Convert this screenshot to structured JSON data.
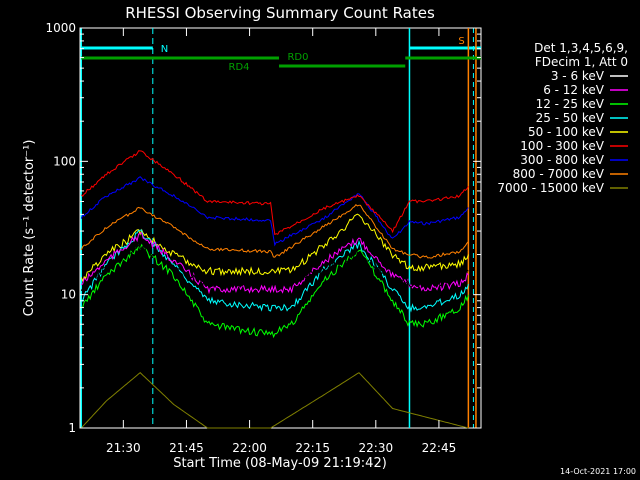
{
  "chart_data": {
    "type": "line",
    "title": "RHESSI Observing Summary Count Rates",
    "xlabel": "Start Time (08-May-09 21:19:42)",
    "ylabel": "Count Rate (s⁻¹ detector⁻¹)",
    "yscale": "log",
    "ylim": [
      1,
      1000
    ],
    "xlim_minutes": [
      21.3,
      22.9
    ],
    "x_ticks": [
      "21:30",
      "21:45",
      "22:00",
      "22:15",
      "22:30",
      "22:45"
    ],
    "y_ticks": [
      "1",
      "10",
      "100",
      "1000"
    ],
    "legend_header": [
      "Det 1,3,4,5,6,9,",
      "FDecim 1, Att 0"
    ],
    "legend_position": "right",
    "footer_date": "14-Oct-2021 17:00",
    "series": [
      {
        "name": "3 - 6 keV",
        "color": "#000000",
        "x": [
          "21:20",
          "21:26",
          "21:34",
          "21:42",
          "21:50",
          "22:05",
          "22:10",
          "22:18",
          "22:26",
          "22:34",
          "22:38",
          "22:42",
          "22:50",
          "22:52"
        ],
        "values": [
          11,
          16,
          23,
          16,
          12,
          12,
          12,
          16,
          20,
          13,
          12,
          12,
          13,
          15
        ]
      },
      {
        "name": "6 - 12 keV",
        "color": "#ff00ff",
        "x": [
          "21:20",
          "21:26",
          "21:34",
          "21:42",
          "21:50",
          "22:05",
          "22:10",
          "22:18",
          "22:26",
          "22:34",
          "22:38",
          "22:42",
          "22:50",
          "22:52"
        ],
        "values": [
          12,
          18,
          28,
          18,
          11,
          11,
          11,
          18,
          26,
          14,
          12,
          11,
          12,
          14
        ]
      },
      {
        "name": "12 - 25 keV",
        "color": "#00ff00",
        "x": [
          "21:20",
          "21:26",
          "21:34",
          "21:42",
          "21:50",
          "22:05",
          "22:10",
          "22:18",
          "22:26",
          "22:34",
          "22:38",
          "22:42",
          "22:50",
          "22:52"
        ],
        "values": [
          8,
          14,
          23,
          14,
          6,
          5,
          6,
          13,
          22,
          9,
          6,
          6,
          8,
          10
        ]
      },
      {
        "name": "25 - 50 keV",
        "color": "#00ffff",
        "x": [
          "21:20",
          "21:26",
          "21:34",
          "21:42",
          "21:50",
          "22:05",
          "22:10",
          "22:18",
          "22:26",
          "22:34",
          "22:38",
          "22:42",
          "22:50",
          "22:52"
        ],
        "values": [
          9,
          17,
          30,
          17,
          9,
          8,
          8,
          16,
          24,
          11,
          8,
          8,
          10,
          12
        ]
      },
      {
        "name": "50 - 100 keV",
        "color": "#ffff00",
        "x": [
          "21:20",
          "21:26",
          "21:34",
          "21:42",
          "21:50",
          "22:05",
          "22:10",
          "22:18",
          "22:26",
          "22:34",
          "22:38",
          "22:42",
          "22:50",
          "22:52"
        ],
        "values": [
          13,
          20,
          30,
          20,
          15,
          15,
          15,
          24,
          40,
          20,
          16,
          16,
          17,
          20
        ]
      },
      {
        "name": "100 - 300 keV",
        "color": "#ff0000",
        "x": [
          "21:20",
          "21:26",
          "21:34",
          "21:42",
          "21:50",
          "22:05",
          "22:06",
          "22:18",
          "22:26",
          "22:34",
          "22:38",
          "22:42",
          "22:50",
          "22:52"
        ],
        "values": [
          55,
          80,
          120,
          80,
          50,
          48,
          28,
          45,
          55,
          30,
          50,
          50,
          55,
          65
        ]
      },
      {
        "name": "300 - 800 keV",
        "color": "#0000ff",
        "x": [
          "21:20",
          "21:26",
          "21:34",
          "21:42",
          "21:50",
          "22:05",
          "22:06",
          "22:18",
          "22:26",
          "22:34",
          "22:38",
          "22:42",
          "22:50",
          "22:52"
        ],
        "values": [
          38,
          55,
          75,
          55,
          38,
          36,
          24,
          38,
          58,
          26,
          35,
          34,
          38,
          45
        ]
      },
      {
        "name": "800 - 7000 keV",
        "color": "#ff8000",
        "x": [
          "21:20",
          "21:26",
          "21:34",
          "21:42",
          "21:50",
          "22:05",
          "22:06",
          "22:18",
          "22:26",
          "22:34",
          "22:38",
          "22:42",
          "22:50",
          "22:52"
        ],
        "values": [
          22,
          32,
          45,
          32,
          22,
          21,
          19,
          33,
          48,
          22,
          20,
          19,
          21,
          25
        ]
      },
      {
        "name": "7000 - 15000 keV",
        "color": "#808000",
        "x": [
          "21:20",
          "21:26",
          "21:34",
          "21:42",
          "21:50",
          "22:05",
          "22:18",
          "22:26",
          "22:34",
          "22:52"
        ],
        "values": [
          1,
          1.6,
          2.6,
          1.5,
          1,
          1,
          1.8,
          2.6,
          1.4,
          1
        ]
      }
    ],
    "annotations": [
      {
        "label": "N",
        "color": "#00ffff"
      },
      {
        "label": "S",
        "color": "#ff8000"
      },
      {
        "label": "RD0",
        "color": "#00a000"
      },
      {
        "label": "RD4",
        "color": "#00a000"
      }
    ]
  }
}
